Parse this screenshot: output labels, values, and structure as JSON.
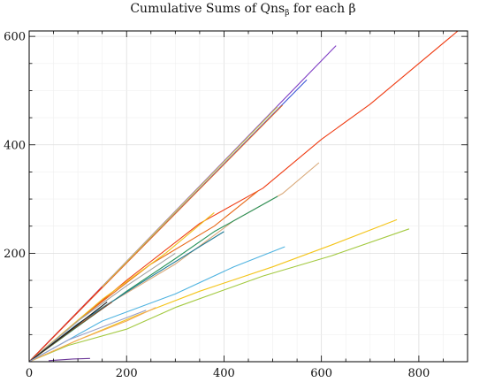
{
  "chart_data": {
    "type": "line",
    "title": "Cumulative Sums of Qns",
    "title_subscript": "β",
    "title_suffix": " for each β",
    "xlabel": "",
    "ylabel": "",
    "xlim": [
      0,
      900
    ],
    "ylim": [
      0,
      610
    ],
    "x_ticks": [
      0,
      200,
      400,
      600,
      800
    ],
    "y_ticks": [
      200,
      400,
      600
    ],
    "x_tick_labels": [
      "0",
      "200",
      "400",
      "600",
      "800"
    ],
    "y_tick_labels": [
      "200",
      "400",
      "600"
    ],
    "grid": true,
    "legend": "none",
    "series": [
      {
        "color": "#7e3cc4",
        "values": [
          [
            0,
            0
          ],
          [
            630,
            583
          ]
        ]
      },
      {
        "color": "#3a55d6",
        "values": [
          [
            0,
            0
          ],
          [
            570,
            520
          ]
        ]
      },
      {
        "color": "#d8d84a",
        "values": [
          [
            0,
            0
          ],
          [
            510,
            470
          ]
        ]
      },
      {
        "color": "#e56d2a",
        "values": [
          [
            0,
            0
          ],
          [
            520,
            473
          ]
        ]
      },
      {
        "color": "#e8281c",
        "values": [
          [
            0,
            0
          ],
          [
            150,
            138
          ]
        ]
      },
      {
        "color": "#ef3b12",
        "values": [
          [
            0,
            0
          ],
          [
            200,
            150
          ],
          [
            350,
            255
          ],
          [
            480,
            320
          ],
          [
            600,
            410
          ],
          [
            700,
            475
          ],
          [
            880,
            610
          ]
        ]
      },
      {
        "color": "#d9a97a",
        "values": [
          [
            0,
            0
          ],
          [
            150,
            100
          ],
          [
            300,
            180
          ],
          [
            420,
            260
          ],
          [
            520,
            310
          ],
          [
            595,
            367
          ]
        ]
      },
      {
        "color": "#29935b",
        "values": [
          [
            0,
            0
          ],
          [
            100,
            65
          ],
          [
            200,
            130
          ],
          [
            300,
            190
          ],
          [
            380,
            240
          ],
          [
            510,
            305
          ]
        ]
      },
      {
        "color": "#e86a1a",
        "values": [
          [
            0,
            0
          ],
          [
            120,
            90
          ],
          [
            250,
            180
          ],
          [
            380,
            250
          ],
          [
            470,
            315
          ]
        ]
      },
      {
        "color": "#f0c21b",
        "values": [
          [
            0,
            0
          ],
          [
            150,
            115
          ],
          [
            280,
            200
          ],
          [
            380,
            275
          ]
        ]
      },
      {
        "color": "#1f7a96",
        "values": [
          [
            0,
            0
          ],
          [
            100,
            70
          ],
          [
            220,
            140
          ],
          [
            400,
            240
          ]
        ]
      },
      {
        "color": "#a3a3a3",
        "values": [
          [
            0,
            0
          ],
          [
            100,
            75
          ],
          [
            200,
            140
          ],
          [
            300,
            200
          ]
        ]
      },
      {
        "color": "#8a4a2a",
        "values": [
          [
            0,
            0
          ],
          [
            90,
            60
          ],
          [
            170,
            110
          ]
        ]
      },
      {
        "color": "#1c1c1c",
        "values": [
          [
            0,
            0
          ],
          [
            80,
            55
          ],
          [
            160,
            110
          ]
        ]
      },
      {
        "color": "#4fb3e0",
        "values": [
          [
            0,
            0
          ],
          [
            150,
            75
          ],
          [
            300,
            125
          ],
          [
            420,
            175
          ],
          [
            525,
            212
          ]
        ]
      },
      {
        "color": "#a3c940",
        "values": [
          [
            0,
            0
          ],
          [
            80,
            30
          ],
          [
            200,
            60
          ],
          [
            300,
            100
          ],
          [
            480,
            158
          ],
          [
            620,
            195
          ],
          [
            780,
            245
          ]
        ]
      },
      {
        "color": "#f4c51b",
        "values": [
          [
            0,
            0
          ],
          [
            100,
            40
          ],
          [
            220,
            85
          ],
          [
            350,
            130
          ],
          [
            500,
            175
          ],
          [
            620,
            215
          ],
          [
            755,
            262
          ]
        ]
      },
      {
        "color": "#f0a858",
        "values": [
          [
            0,
            0
          ],
          [
            100,
            40
          ],
          [
            200,
            75
          ],
          [
            260,
            100
          ]
        ]
      },
      {
        "color": "#9aa0c8",
        "values": [
          [
            0,
            0
          ],
          [
            80,
            40
          ],
          [
            240,
            95
          ]
        ]
      },
      {
        "color": "#6e3a9a",
        "values": [
          [
            40,
            2
          ],
          [
            90,
            5
          ],
          [
            125,
            6
          ]
        ]
      }
    ]
  }
}
